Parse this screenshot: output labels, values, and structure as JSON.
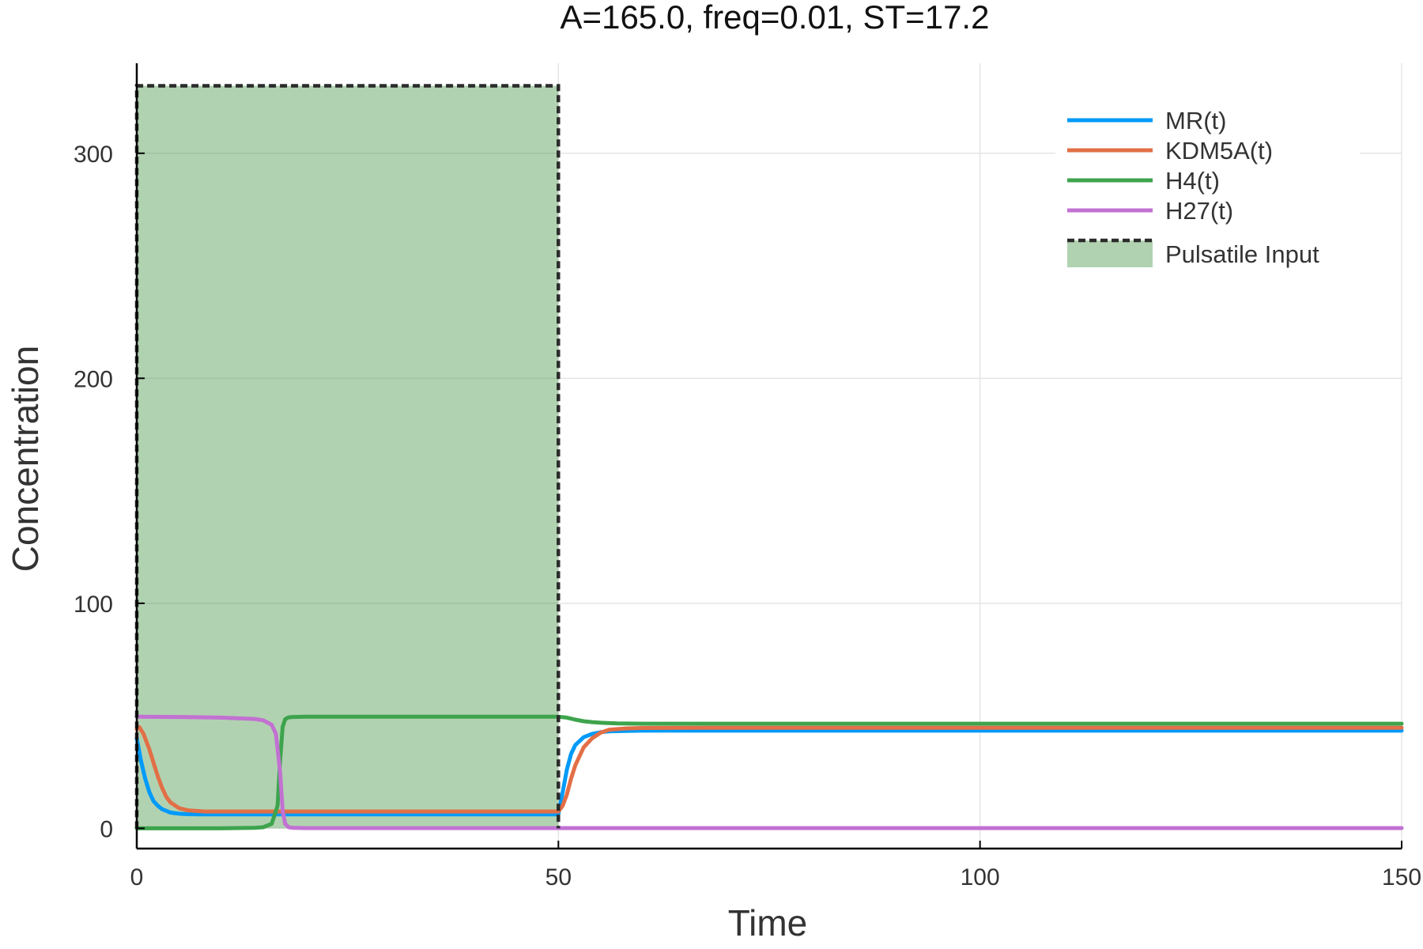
{
  "chart_data": {
    "type": "line",
    "title": "A=165.0, freq=0.01, ST=17.2",
    "xlabel": "Time",
    "ylabel": "Concentration",
    "xlim": [
      0,
      150
    ],
    "ylim": [
      -9,
      340
    ],
    "xticks": [
      0,
      50,
      100,
      150
    ],
    "xtick_labels": [
      "0",
      "50",
      "100",
      "150"
    ],
    "yticks": [
      0,
      100,
      200,
      300
    ],
    "ytick_labels": [
      "0",
      "100",
      "200",
      "300"
    ],
    "grid": true,
    "legend_position": "top-right",
    "series": [
      {
        "name": "MR(t)",
        "color": "#009AF9",
        "x": [
          0,
          0.5,
          1,
          1.5,
          2,
          2.5,
          3,
          4,
          5,
          6,
          8,
          10,
          20,
          30,
          40,
          49.9,
          50,
          50.5,
          51,
          51.5,
          52,
          53,
          54,
          55,
          56,
          58,
          60,
          70,
          80,
          100,
          120,
          150
        ],
        "y": [
          40,
          30,
          22,
          16,
          12,
          10,
          8.5,
          7,
          6.5,
          6.3,
          6.2,
          6.2,
          6.2,
          6.2,
          6.2,
          6.2,
          6.2,
          16,
          26,
          33,
          37,
          40.5,
          42,
          42.7,
          43.1,
          43.3,
          43.4,
          43.4,
          43.4,
          43.4,
          43.4,
          43.4
        ]
      },
      {
        "name": "KDM5A(t)",
        "color": "#E26F46",
        "x": [
          0,
          0.3,
          0.8,
          1.5,
          2,
          2.5,
          3,
          3.5,
          4,
          5,
          6,
          8,
          10,
          20,
          30,
          40,
          49.9,
          50,
          50.5,
          51,
          51.5,
          52,
          52.5,
          53,
          54,
          55,
          56,
          58,
          60,
          70,
          100,
          150
        ],
        "y": [
          44,
          45,
          42,
          35,
          29,
          23,
          18,
          14,
          11.5,
          9,
          8,
          7.5,
          7.5,
          7.5,
          7.5,
          7.5,
          7.5,
          7.5,
          10,
          15,
          22,
          28,
          32,
          36,
          40,
          42.5,
          43.8,
          44.4,
          44.6,
          44.7,
          44.7,
          44.7
        ]
      },
      {
        "name": "H4(t)",
        "color": "#3DA44D",
        "x": [
          0,
          5,
          10,
          14,
          15,
          16,
          16.7,
          17,
          17.3,
          17.6,
          18,
          18.5,
          20,
          30,
          40,
          49.9,
          50,
          51,
          52,
          53,
          54,
          55,
          57,
          60,
          70,
          100,
          150
        ],
        "y": [
          0,
          0,
          0,
          0.2,
          0.5,
          2,
          10,
          30,
          45,
          48.5,
          49.3,
          49.5,
          49.6,
          49.6,
          49.6,
          49.6,
          49.6,
          49.2,
          48.3,
          47.6,
          47.2,
          46.9,
          46.6,
          46.5,
          46.5,
          46.5,
          46.5
        ]
      },
      {
        "name": "H27(t)",
        "color": "#C271D2",
        "x": [
          0,
          5,
          10,
          14,
          15,
          16,
          16.5,
          17,
          17.3,
          17.6,
          18,
          18.5,
          20,
          30,
          50,
          100,
          150
        ],
        "y": [
          49.6,
          49.5,
          49.2,
          48.6,
          48,
          46,
          42,
          25,
          8,
          2,
          0.5,
          0.2,
          0.1,
          0.1,
          0.1,
          0.1,
          0.1
        ]
      }
    ],
    "input": {
      "name": "Pulsatile Input",
      "line_color": "#2B2B2B",
      "fill_color": "#3D8F3D",
      "x": [
        0,
        0,
        50,
        50
      ],
      "y": [
        0,
        330,
        330,
        0
      ]
    }
  }
}
